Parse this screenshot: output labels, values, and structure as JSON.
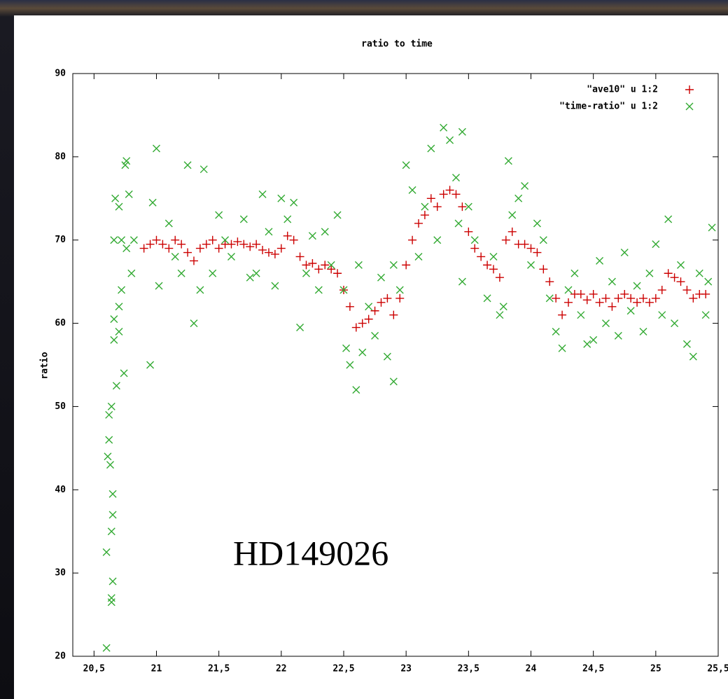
{
  "chart_data": {
    "type": "scatter",
    "title": "ratio to time",
    "y_label": "ratio",
    "annotation": "HD149026",
    "xlim": [
      20.33,
      25.5
    ],
    "ylim": [
      20,
      90
    ],
    "xticks": [
      {
        "value": 20.5,
        "label": "20,5"
      },
      21,
      {
        "value": 21.5,
        "label": "21,5"
      },
      22,
      {
        "value": 22.5,
        "label": "22,5"
      },
      23,
      {
        "value": 23.5,
        "label": "23,5"
      },
      24,
      {
        "value": 24.5,
        "label": "24,5"
      },
      25,
      {
        "value": 25.5,
        "label": "25,5"
      }
    ],
    "yticks": [
      20,
      30,
      40,
      50,
      60,
      70,
      80,
      90
    ],
    "grid": false,
    "legend": "top-right",
    "series": [
      {
        "name": "\"ave10\" u 1:2",
        "color": "#cc0000",
        "marker": "plus",
        "x": [
          20.9,
          20.95,
          21.0,
          21.05,
          21.1,
          21.15,
          21.2,
          21.25,
          21.3,
          21.35,
          21.4,
          21.45,
          21.5,
          21.55,
          21.6,
          21.65,
          21.7,
          21.75,
          21.8,
          21.85,
          21.9,
          21.95,
          22.0,
          22.05,
          22.1,
          22.15,
          22.2,
          22.25,
          22.3,
          22.35,
          22.4,
          22.45,
          22.5,
          22.55,
          22.6,
          22.65,
          22.7,
          22.75,
          22.8,
          22.85,
          22.9,
          22.95,
          23.0,
          23.05,
          23.1,
          23.15,
          23.2,
          23.25,
          23.3,
          23.35,
          23.4,
          23.45,
          23.5,
          23.55,
          23.6,
          23.65,
          23.7,
          23.75,
          23.8,
          23.85,
          23.9,
          23.95,
          24.0,
          24.05,
          24.1,
          24.15,
          24.2,
          24.25,
          24.3,
          24.35,
          24.4,
          24.45,
          24.5,
          24.55,
          24.6,
          24.65,
          24.7,
          24.75,
          24.8,
          24.85,
          24.9,
          24.95,
          25.0,
          25.05,
          25.1,
          25.15,
          25.2,
          25.25,
          25.3,
          25.35,
          25.4
        ],
        "values": [
          69,
          69.5,
          70,
          69.5,
          69,
          70,
          69.5,
          68.5,
          67.5,
          69,
          69.5,
          70,
          69,
          69.5,
          69.5,
          69.8,
          69.5,
          69.2,
          69.5,
          68.8,
          68.5,
          68.3,
          69,
          70.5,
          70,
          68,
          67,
          67.2,
          66.5,
          67,
          66.5,
          66,
          64,
          62,
          59.5,
          60,
          60.5,
          61.5,
          62.5,
          63,
          61,
          63,
          67,
          70,
          72,
          73,
          75,
          74,
          75.5,
          76,
          75.5,
          74,
          71,
          69,
          68,
          67,
          66.5,
          65.5,
          70,
          71,
          69.5,
          69.5,
          69,
          68.5,
          66.5,
          65,
          63,
          61,
          62.5,
          63.5,
          63.5,
          62.8,
          63.5,
          62.5,
          63,
          62,
          63,
          63.5,
          63,
          62.5,
          63,
          62.5,
          63,
          64,
          66,
          65.5,
          65,
          64,
          63,
          63.5,
          63.5
        ]
      },
      {
        "name": "\"time-ratio\" u 1:2",
        "color": "#33aa33",
        "marker": "cross",
        "x": [
          20.6,
          20.6,
          20.61,
          20.62,
          20.62,
          20.63,
          20.64,
          20.64,
          20.65,
          20.64,
          20.65,
          20.65,
          20.64,
          20.66,
          20.66,
          20.68,
          20.7,
          20.7,
          20.72,
          20.74,
          20.66,
          20.67,
          20.7,
          20.72,
          20.75,
          20.76,
          20.78,
          20.76,
          20.8,
          20.82,
          20.95,
          20.97,
          21.0,
          21.02,
          21.1,
          21.15,
          21.2,
          21.25,
          21.3,
          21.35,
          21.38,
          21.45,
          21.5,
          21.55,
          21.6,
          21.7,
          21.75,
          21.8,
          21.85,
          21.9,
          21.95,
          22.0,
          22.05,
          22.1,
          22.15,
          22.2,
          22.25,
          22.3,
          22.35,
          22.4,
          22.45,
          22.5,
          22.52,
          22.55,
          22.6,
          22.62,
          22.65,
          22.7,
          22.75,
          22.8,
          22.85,
          22.9,
          22.9,
          22.95,
          23.0,
          23.05,
          23.1,
          23.15,
          23.2,
          23.25,
          23.3,
          23.35,
          23.4,
          23.45,
          23.42,
          23.5,
          23.45,
          23.55,
          23.65,
          23.7,
          23.75,
          23.78,
          23.82,
          23.85,
          23.9,
          23.95,
          24.0,
          24.05,
          24.1,
          24.15,
          24.2,
          24.25,
          24.3,
          24.35,
          24.4,
          24.45,
          24.5,
          24.55,
          24.6,
          24.65,
          24.7,
          24.75,
          24.8,
          24.85,
          24.9,
          24.95,
          25.0,
          25.05,
          25.1,
          25.15,
          25.2,
          25.25,
          25.3,
          25.35,
          25.4,
          25.45,
          25.42
        ],
        "values": [
          21,
          32.5,
          44,
          46,
          49,
          43,
          27,
          26.5,
          29,
          35,
          37,
          39.5,
          50,
          60.5,
          58,
          52.5,
          59,
          62,
          64,
          54,
          70,
          75,
          74,
          70,
          79,
          79.5,
          75.5,
          69,
          66,
          70,
          55,
          74.5,
          81,
          64.5,
          72,
          68,
          66,
          79,
          60,
          64,
          78.5,
          66,
          73,
          70,
          68,
          72.5,
          65.5,
          66,
          75.5,
          71,
          64.5,
          75,
          72.5,
          74.5,
          59.5,
          66,
          70.5,
          64,
          71,
          67,
          73,
          64,
          57,
          55,
          52,
          67,
          56.5,
          62,
          58.5,
          65.5,
          56,
          53,
          67,
          64,
          79,
          76,
          68,
          74,
          81,
          70,
          83.5,
          82,
          77.5,
          83,
          72,
          74,
          65,
          70,
          63,
          68,
          61,
          62,
          79.5,
          73,
          75,
          76.5,
          67,
          72,
          70,
          63,
          59,
          57,
          64,
          66,
          61,
          57.5,
          58,
          67.5,
          60,
          65,
          58.5,
          68.5,
          61.5,
          64.5,
          59,
          66,
          69.5,
          61,
          72.5,
          60,
          67,
          57.5,
          56,
          66,
          61,
          71.5,
          65
        ]
      }
    ]
  }
}
